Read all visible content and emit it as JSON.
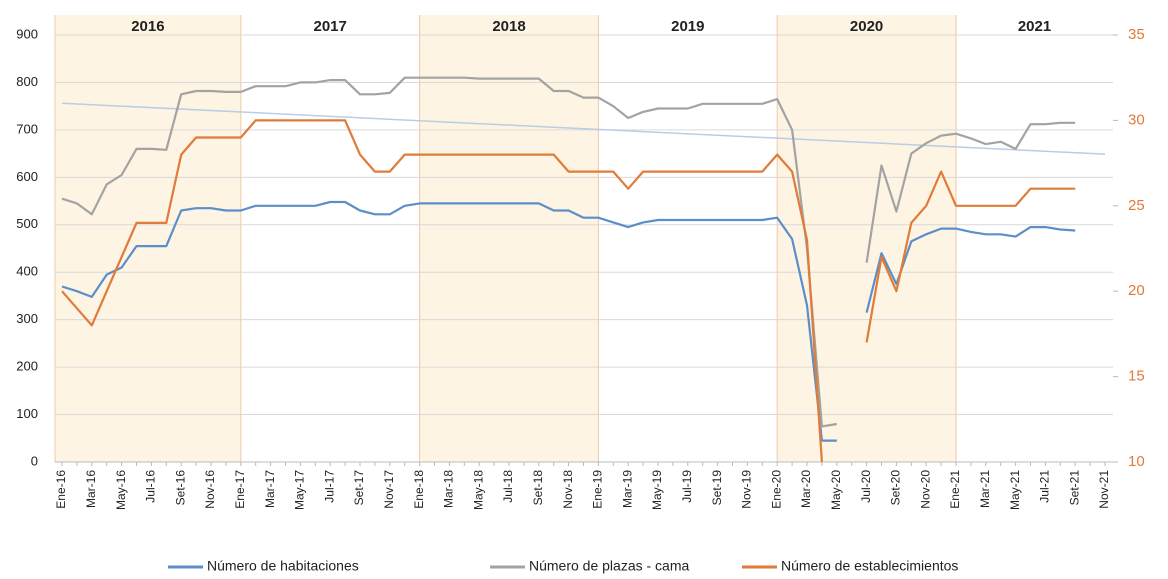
{
  "chart_data": {
    "type": "line",
    "year_bands": [
      {
        "label": "2016",
        "shaded": true
      },
      {
        "label": "2017",
        "shaded": false
      },
      {
        "label": "2018",
        "shaded": true
      },
      {
        "label": "2019",
        "shaded": false
      },
      {
        "label": "2020",
        "shaded": true
      },
      {
        "label": "2021",
        "shaded": false
      }
    ],
    "categories": [
      "Ene-16",
      null,
      "Mar-16",
      null,
      "May-16",
      null,
      "Jul-16",
      null,
      "Set-16",
      null,
      "Nov-16",
      null,
      "Ene-17",
      null,
      "Mar-17",
      null,
      "May-17",
      null,
      "Jul-17",
      null,
      "Set-17",
      null,
      "Nov-17",
      null,
      "Ene-18",
      null,
      "Mar-18",
      null,
      "May-18",
      null,
      "Jul-18",
      null,
      "Set-18",
      null,
      "Nov-18",
      null,
      "Ene-19",
      null,
      "Mar-19",
      null,
      "May-19",
      null,
      "Jul-19",
      null,
      "Set-19",
      null,
      "Nov-19",
      null,
      "Ene-20",
      null,
      "Mar-20",
      null,
      "May-20",
      null,
      "Jul-20",
      null,
      "Set-20",
      null,
      "Nov-20",
      null,
      "Ene-21",
      null,
      "Mar-21",
      null,
      "May-21",
      null,
      "Jul-21",
      null,
      "Set-21",
      null,
      "Nov-21"
    ],
    "series": [
      {
        "name": "Número de habitaciones",
        "color": "#5b8fc9",
        "values": [
          370,
          360,
          348,
          395,
          410,
          455,
          455,
          455,
          530,
          535,
          535,
          530,
          530,
          540,
          540,
          540,
          540,
          540,
          548,
          548,
          530,
          522,
          522,
          540,
          545,
          545,
          545,
          545,
          545,
          545,
          545,
          545,
          545,
          530,
          530,
          515,
          515,
          505,
          495,
          505,
          510,
          510,
          510,
          510,
          510,
          510,
          510,
          510,
          515,
          470,
          330,
          45,
          45,
          null,
          315,
          440,
          375,
          465,
          480,
          492,
          492,
          485,
          480,
          480,
          475,
          495,
          495,
          490,
          488,
          null,
          null
        ]
      },
      {
        "name": "Número de plazas - cama",
        "color": "#a3a3a3",
        "values": [
          555,
          545,
          522,
          585,
          605,
          660,
          660,
          658,
          775,
          782,
          782,
          780,
          780,
          792,
          792,
          792,
          800,
          800,
          805,
          805,
          775,
          775,
          778,
          810,
          810,
          810,
          810,
          810,
          808,
          808,
          808,
          808,
          808,
          782,
          782,
          768,
          768,
          750,
          725,
          738,
          745,
          745,
          745,
          755,
          755,
          755,
          755,
          755,
          765,
          700,
          450,
          75,
          80,
          null,
          420,
          625,
          528,
          650,
          672,
          688,
          692,
          682,
          670,
          675,
          660,
          712,
          712,
          715,
          715,
          null,
          null
        ]
      },
      {
        "name": "Número de establecimientos",
        "color": "#e07b39",
        "axis": "y2",
        "values": [
          20,
          19,
          18,
          20,
          22,
          24,
          24,
          24,
          28,
          29,
          29,
          29,
          29,
          30,
          30,
          30,
          30,
          30,
          30,
          30,
          28,
          27,
          27,
          28,
          28,
          28,
          28,
          28,
          28,
          28,
          28,
          28,
          28,
          28,
          27,
          27,
          27,
          27,
          26,
          27,
          27,
          27,
          27,
          27,
          27,
          27,
          27,
          27,
          28,
          27,
          23,
          10,
          null,
          null,
          17,
          22,
          20,
          24,
          25,
          27,
          25,
          25,
          25,
          25,
          25,
          26,
          26,
          26,
          26,
          null,
          null
        ]
      }
    ],
    "trendline_color": "#b9cde4",
    "ylim": [
      0,
      900
    ],
    "yticks": [
      0,
      100,
      200,
      300,
      400,
      500,
      600,
      700,
      800,
      900
    ],
    "y2lim": [
      10,
      35
    ],
    "y2ticks": [
      10,
      15,
      20,
      25,
      30,
      35
    ],
    "y2_color": "#e07b39",
    "grid": true
  }
}
